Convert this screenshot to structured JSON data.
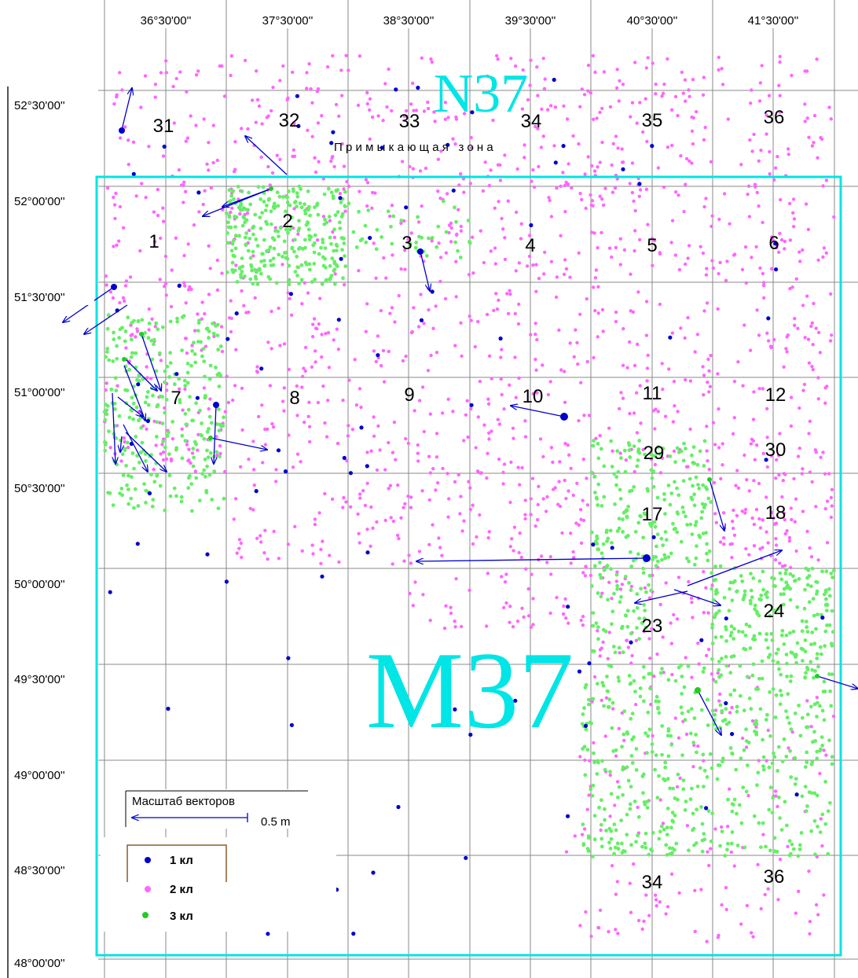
{
  "map": {
    "lon_labels": [
      "36°30'00''",
      "37°30'00''",
      "38°30'00''",
      "39°30'00''",
      "40°30'00''",
      "41°30'00''"
    ],
    "lat_labels": [
      "52°30'00''",
      "52°00'00''",
      "51°30'00''",
      "51°00'00''",
      "50°30'00''",
      "50°00'00''",
      "49°30'00''",
      "49°00'00''",
      "48°30'00''",
      "48°00'00''"
    ],
    "sheets": {
      "upper": "N37",
      "main": "M37",
      "color": "#00e5e5"
    },
    "adjacent_zone_label": "Примыкающая зона",
    "cell_numbers_upper": [
      "31",
      "32",
      "33",
      "34",
      "35",
      "36"
    ],
    "cell_numbers_main": [
      "1",
      "2",
      "3",
      "4",
      "5",
      "6",
      "7",
      "8",
      "9",
      "10",
      "11",
      "12",
      "17",
      "18",
      "23",
      "24",
      "29",
      "30",
      "34",
      "36"
    ],
    "colors": {
      "class1": "#0000cc",
      "class2": "#ff66ff",
      "class3": "#66ee66",
      "vector": "#0000cc",
      "grid": "#888888"
    }
  },
  "legend": {
    "scale_title": "Масштаб векторов",
    "scale_value": "0.5 m",
    "class1_label": "1 кл",
    "class2_label": "2 кл",
    "class3_label": "3 кл"
  }
}
